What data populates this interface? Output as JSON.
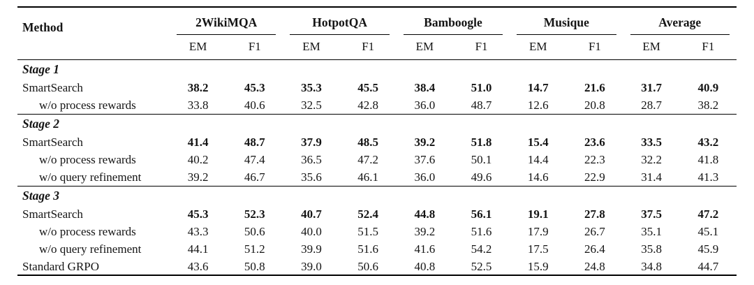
{
  "table": {
    "method_header": "Method",
    "groups": [
      {
        "label": "2WikiMQA"
      },
      {
        "label": "HotpotQA"
      },
      {
        "label": "Bamboogle"
      },
      {
        "label": "Musique"
      },
      {
        "label": "Average"
      }
    ],
    "subheaders": [
      "EM",
      "F1"
    ],
    "sections": [
      {
        "title": "Stage 1",
        "rows": [
          {
            "method": "SmartSearch",
            "indent": false,
            "bold": true,
            "values": [
              "38.2",
              "45.3",
              "35.3",
              "45.5",
              "38.4",
              "51.0",
              "14.7",
              "21.6",
              "31.7",
              "40.9"
            ]
          },
          {
            "method": "w/o process rewards",
            "indent": true,
            "bold": false,
            "values": [
              "33.8",
              "40.6",
              "32.5",
              "42.8",
              "36.0",
              "48.7",
              "12.6",
              "20.8",
              "28.7",
              "38.2"
            ]
          }
        ]
      },
      {
        "title": "Stage 2",
        "rows": [
          {
            "method": "SmartSearch",
            "indent": false,
            "bold": true,
            "values": [
              "41.4",
              "48.7",
              "37.9",
              "48.5",
              "39.2",
              "51.8",
              "15.4",
              "23.6",
              "33.5",
              "43.2"
            ]
          },
          {
            "method": "w/o process rewards",
            "indent": true,
            "bold": false,
            "values": [
              "40.2",
              "47.4",
              "36.5",
              "47.2",
              "37.6",
              "50.1",
              "14.4",
              "22.3",
              "32.2",
              "41.8"
            ]
          },
          {
            "method": "w/o query refinement",
            "indent": true,
            "bold": false,
            "values": [
              "39.2",
              "46.7",
              "35.6",
              "46.1",
              "36.0",
              "49.6",
              "14.6",
              "22.9",
              "31.4",
              "41.3"
            ]
          }
        ]
      },
      {
        "title": "Stage 3",
        "rows": [
          {
            "method": "SmartSearch",
            "indent": false,
            "bold": true,
            "values": [
              "45.3",
              "52.3",
              "40.7",
              "52.4",
              "44.8",
              "56.1",
              "19.1",
              "27.8",
              "37.5",
              "47.2"
            ]
          },
          {
            "method": "w/o process rewards",
            "indent": true,
            "bold": false,
            "values": [
              "43.3",
              "50.6",
              "40.0",
              "51.5",
              "39.2",
              "51.6",
              "17.9",
              "26.7",
              "35.1",
              "45.1"
            ]
          },
          {
            "method": "w/o query refinement",
            "indent": true,
            "bold": false,
            "values": [
              "44.1",
              "51.2",
              "39.9",
              "51.6",
              "41.6",
              "54.2",
              "17.5",
              "26.4",
              "35.8",
              "45.9"
            ]
          },
          {
            "method": "Standard GRPO",
            "indent": false,
            "bold": false,
            "values": [
              "43.6",
              "50.8",
              "39.0",
              "50.6",
              "40.8",
              "52.5",
              "15.9",
              "24.8",
              "34.8",
              "44.7"
            ]
          }
        ]
      }
    ],
    "colors": {
      "text": "#141414",
      "rule": "#000000",
      "background": "#ffffff"
    }
  }
}
